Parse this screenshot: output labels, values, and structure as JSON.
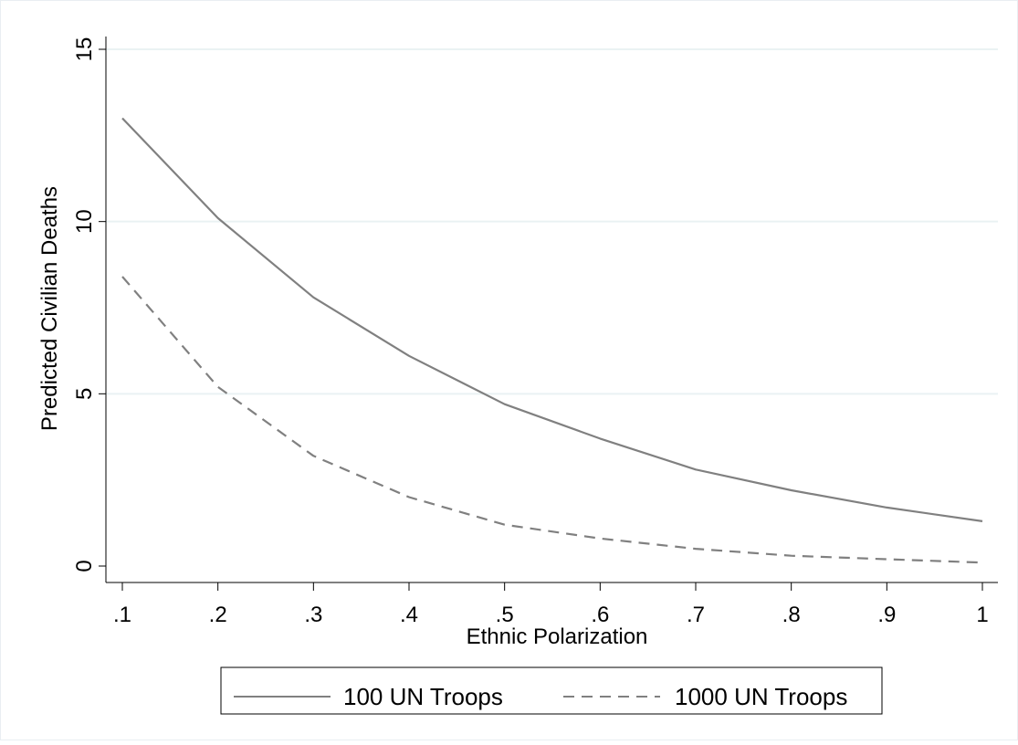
{
  "chart_data": {
    "type": "line",
    "xlabel": "Ethnic Polarization",
    "ylabel": "Predicted Civilian Deaths",
    "xlim": [
      0.1,
      1
    ],
    "ylim": [
      0,
      15
    ],
    "x_ticks": [
      {
        "value": 0.1,
        "label": ".1"
      },
      {
        "value": 0.2,
        "label": ".2"
      },
      {
        "value": 0.3,
        "label": ".3"
      },
      {
        "value": 0.4,
        "label": ".4"
      },
      {
        "value": 0.5,
        "label": ".5"
      },
      {
        "value": 0.6,
        "label": ".6"
      },
      {
        "value": 0.7,
        "label": ".7"
      },
      {
        "value": 0.8,
        "label": ".8"
      },
      {
        "value": 0.9,
        "label": ".9"
      },
      {
        "value": 1.0,
        "label": "1"
      }
    ],
    "y_ticks": [
      {
        "value": 0,
        "label": "0"
      },
      {
        "value": 5,
        "label": "5"
      },
      {
        "value": 10,
        "label": "10"
      },
      {
        "value": 15,
        "label": "15"
      }
    ],
    "grid": "horizontal",
    "legend_position": "bottom",
    "x": [
      0.1,
      0.2,
      0.3,
      0.4,
      0.5,
      0.6,
      0.7,
      0.8,
      0.9,
      1.0
    ],
    "series": [
      {
        "name": "100 UN Troops",
        "style": "solid",
        "color": "#808080",
        "values": [
          13.0,
          10.1,
          7.8,
          6.1,
          4.7,
          3.7,
          2.8,
          2.2,
          1.7,
          1.3
        ]
      },
      {
        "name": "1000 UN Troops",
        "style": "dashed",
        "color": "#808080",
        "values": [
          8.4,
          5.2,
          3.2,
          2.0,
          1.2,
          0.8,
          0.5,
          0.3,
          0.2,
          0.1
        ]
      }
    ]
  }
}
